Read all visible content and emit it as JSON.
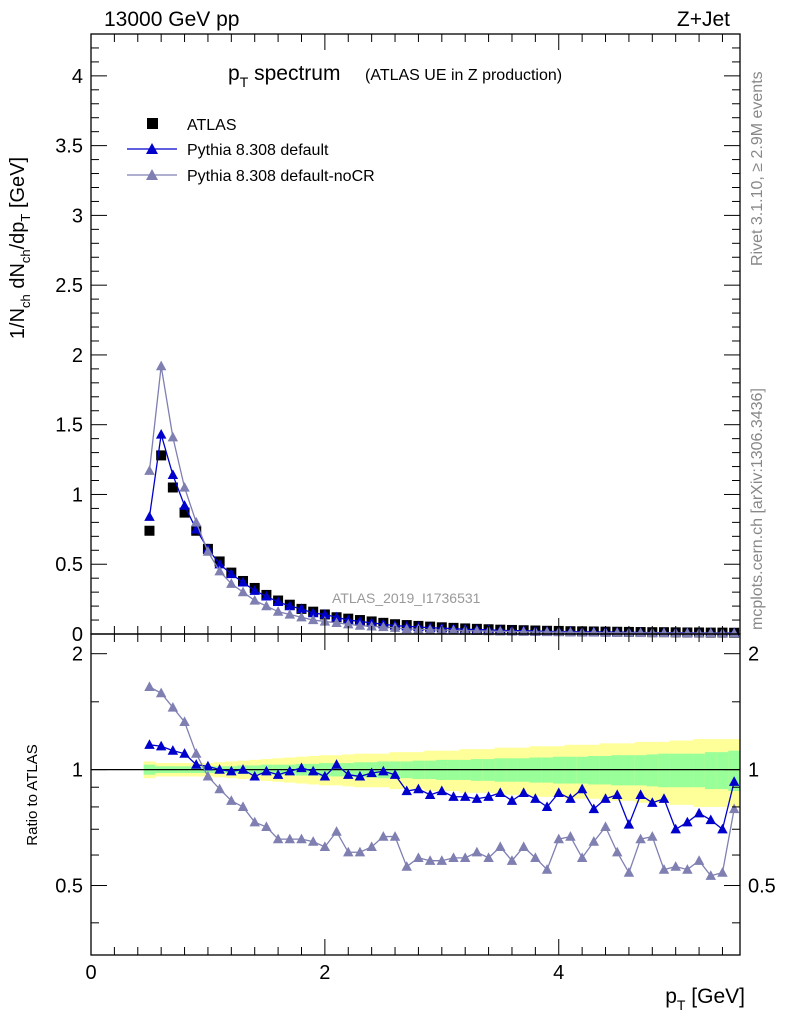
{
  "header": {
    "energy": "13000 GeV pp",
    "process": "Z+Jet"
  },
  "side_labels": {
    "rivet": "Rivet 3.1.10, ≥ 2.9M events",
    "mcplots": "mcplots.cern.ch [arXiv:1306.3436]"
  },
  "chart_data": [
    {
      "type": "scatter",
      "title_main": "p",
      "title_sub": "T",
      "title_rest": " spectrum",
      "title_note": "(ATLAS UE in Z production)",
      "ylabel": "1/N_ch dN_ch/dp_T [GeV]",
      "ylabel_parts": {
        "a": "1/N",
        "b": "ch",
        "c": " dN",
        "d": "ch",
        "e": "/dp",
        "f": "T",
        "g": " [GeV]"
      },
      "watermark": "ATLAS_2019_I1736531",
      "xlim": [
        0,
        5.55
      ],
      "ylim": [
        0,
        4.3
      ],
      "yticks": [
        0,
        0.5,
        1,
        1.5,
        2,
        2.5,
        3,
        3.5,
        4
      ],
      "ytick_labels": [
        "0",
        "0.5",
        "1",
        "1.5",
        "2",
        "2.5",
        "3",
        "3.5",
        "4"
      ],
      "legend": [
        {
          "name": "ATLAS",
          "color": "#000000",
          "marker": "square"
        },
        {
          "name": "Pythia 8.308 default",
          "color": "#0000cc",
          "marker": "triangle"
        },
        {
          "name": "Pythia 8.308 default-noCR",
          "color": "#7f7fb2",
          "marker": "triangle"
        }
      ],
      "x": [
        0.5,
        0.6,
        0.7,
        0.8,
        0.9,
        1.0,
        1.1,
        1.2,
        1.3,
        1.4,
        1.5,
        1.6,
        1.7,
        1.8,
        1.9,
        2.0,
        2.1,
        2.2,
        2.3,
        2.4,
        2.5,
        2.6,
        2.7,
        2.8,
        2.9,
        3.0,
        3.1,
        3.2,
        3.3,
        3.4,
        3.5,
        3.6,
        3.7,
        3.8,
        3.9,
        4.0,
        4.1,
        4.2,
        4.3,
        4.4,
        4.5,
        4.6,
        4.7,
        4.8,
        4.9,
        5.0,
        5.1,
        5.2,
        5.3,
        5.4,
        5.5
      ],
      "series": [
        {
          "name": "ATLAS",
          "values": [
            0.74,
            1.28,
            1.05,
            0.87,
            0.74,
            0.61,
            0.52,
            0.44,
            0.38,
            0.33,
            0.28,
            0.24,
            0.21,
            0.18,
            0.16,
            0.14,
            0.12,
            0.11,
            0.1,
            0.09,
            0.08,
            0.07,
            0.064,
            0.058,
            0.053,
            0.048,
            0.044,
            0.04,
            0.037,
            0.034,
            0.031,
            0.029,
            0.027,
            0.025,
            0.023,
            0.022,
            0.02,
            0.019,
            0.018,
            0.017,
            0.016,
            0.015,
            0.014,
            0.013,
            0.013,
            0.012,
            0.011,
            0.011,
            0.01,
            0.01,
            0.009
          ]
        },
        {
          "name": "Pythia 8.308 default",
          "values": [
            0.84,
            1.43,
            1.14,
            0.92,
            0.75,
            0.61,
            0.5,
            0.43,
            0.37,
            0.31,
            0.27,
            0.23,
            0.2,
            0.18,
            0.15,
            0.14,
            0.12,
            0.1,
            0.09,
            0.08,
            0.07,
            0.06,
            0.055,
            0.05,
            0.045,
            0.042,
            0.038,
            0.034,
            0.032,
            0.029,
            0.026,
            0.025,
            0.023,
            0.021,
            0.019,
            0.018,
            0.017,
            0.016,
            0.015,
            0.014,
            0.013,
            0.012,
            0.011,
            0.01,
            0.01,
            0.009,
            0.009,
            0.008,
            0.008,
            0.008,
            0.008
          ]
        },
        {
          "name": "Pythia 8.308 default-noCR",
          "values": [
            1.17,
            1.92,
            1.41,
            1.05,
            0.8,
            0.59,
            0.45,
            0.36,
            0.3,
            0.24,
            0.2,
            0.16,
            0.14,
            0.12,
            0.1,
            0.09,
            0.08,
            0.07,
            0.06,
            0.055,
            0.05,
            0.045,
            0.036,
            0.034,
            0.031,
            0.028,
            0.026,
            0.024,
            0.022,
            0.021,
            0.019,
            0.018,
            0.016,
            0.015,
            0.014,
            0.013,
            0.012,
            0.011,
            0.011,
            0.01,
            0.009,
            0.009,
            0.008,
            0.008,
            0.007,
            0.007,
            0.006,
            0.006,
            0.006,
            0.005,
            0.005
          ]
        }
      ]
    },
    {
      "type": "scatter",
      "ylabel": "Ratio to ATLAS",
      "xlabel_main": "p",
      "xlabel_sub": "T",
      "xlabel_rest": " [GeV]",
      "xlim": [
        0,
        5.55
      ],
      "ylim": [
        0.33,
        2.25
      ],
      "yticks": [
        0.5,
        1,
        2
      ],
      "ytick_labels": [
        "0.5",
        "1",
        "2"
      ],
      "xticks": [
        0,
        2,
        4
      ],
      "xtick_labels": [
        "0",
        "2",
        "4"
      ],
      "band_colors": {
        "inner": "#99ff99",
        "outer": "#ffff99"
      },
      "x": [
        0.5,
        0.6,
        0.7,
        0.8,
        0.9,
        1.0,
        1.1,
        1.2,
        1.3,
        1.4,
        1.5,
        1.6,
        1.7,
        1.8,
        1.9,
        2.0,
        2.1,
        2.2,
        2.3,
        2.4,
        2.5,
        2.6,
        2.7,
        2.8,
        2.9,
        3.0,
        3.1,
        3.2,
        3.3,
        3.4,
        3.5,
        3.6,
        3.7,
        3.8,
        3.9,
        4.0,
        4.1,
        4.2,
        4.3,
        4.4,
        4.5,
        4.6,
        4.7,
        4.8,
        4.9,
        5.0,
        5.1,
        5.2,
        5.3,
        5.4,
        5.5
      ],
      "band_inner": [
        0.03,
        0.02,
        0.02,
        0.02,
        0.02,
        0.02,
        0.02,
        0.02,
        0.025,
        0.025,
        0.03,
        0.03,
        0.03,
        0.035,
        0.035,
        0.04,
        0.04,
        0.04,
        0.045,
        0.045,
        0.05,
        0.05,
        0.05,
        0.055,
        0.055,
        0.06,
        0.06,
        0.06,
        0.065,
        0.065,
        0.07,
        0.07,
        0.07,
        0.075,
        0.075,
        0.08,
        0.08,
        0.08,
        0.085,
        0.085,
        0.09,
        0.09,
        0.09,
        0.095,
        0.1,
        0.1,
        0.1,
        0.1,
        0.11,
        0.11,
        0.12
      ],
      "band_outer": [
        0.05,
        0.04,
        0.04,
        0.04,
        0.04,
        0.04,
        0.045,
        0.05,
        0.055,
        0.06,
        0.065,
        0.07,
        0.075,
        0.08,
        0.085,
        0.09,
        0.09,
        0.095,
        0.1,
        0.1,
        0.1,
        0.11,
        0.11,
        0.11,
        0.12,
        0.12,
        0.12,
        0.13,
        0.13,
        0.13,
        0.14,
        0.14,
        0.14,
        0.15,
        0.15,
        0.15,
        0.16,
        0.16,
        0.16,
        0.17,
        0.17,
        0.17,
        0.18,
        0.18,
        0.18,
        0.19,
        0.19,
        0.2,
        0.2,
        0.2,
        0.2
      ],
      "series": [
        {
          "name": "Pythia 8.308 default",
          "values": [
            1.16,
            1.15,
            1.12,
            1.1,
            1.03,
            1.02,
            1.0,
            0.99,
            1.0,
            0.96,
            0.99,
            0.97,
            0.99,
            1.01,
            0.99,
            0.96,
            1.03,
            0.97,
            0.96,
            0.98,
            0.99,
            0.97,
            0.88,
            0.89,
            0.86,
            0.88,
            0.85,
            0.85,
            0.84,
            0.85,
            0.87,
            0.83,
            0.87,
            0.84,
            0.8,
            0.87,
            0.84,
            0.89,
            0.79,
            0.84,
            0.86,
            0.72,
            0.86,
            0.82,
            0.84,
            0.7,
            0.73,
            0.77,
            0.74,
            0.7,
            0.93
          ]
        },
        {
          "name": "Pythia 8.308 default-noCR",
          "values": [
            1.64,
            1.58,
            1.45,
            1.33,
            1.1,
            0.96,
            0.89,
            0.83,
            0.8,
            0.73,
            0.71,
            0.66,
            0.66,
            0.66,
            0.65,
            0.63,
            0.69,
            0.61,
            0.61,
            0.63,
            0.67,
            0.67,
            0.56,
            0.59,
            0.58,
            0.58,
            0.59,
            0.59,
            0.61,
            0.59,
            0.63,
            0.58,
            0.63,
            0.59,
            0.55,
            0.66,
            0.67,
            0.59,
            0.65,
            0.71,
            0.61,
            0.54,
            0.66,
            0.67,
            0.55,
            0.56,
            0.55,
            0.58,
            0.53,
            0.54,
            0.79
          ]
        }
      ]
    }
  ]
}
